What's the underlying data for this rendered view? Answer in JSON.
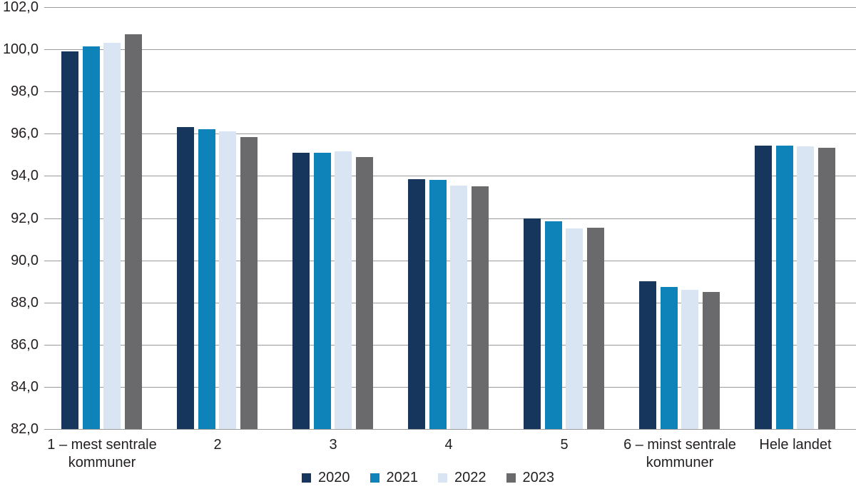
{
  "chart_data": {
    "type": "bar",
    "title": "",
    "categories": [
      "1 – mest sentrale kommuner",
      "2",
      "3",
      "4",
      "5",
      "6 – minst sentrale kommuner",
      "Hele landet"
    ],
    "series": [
      {
        "name": "2020",
        "color": "#17365D",
        "values": [
          99.9,
          96.3,
          95.1,
          93.85,
          92.0,
          89.0,
          95.45
        ]
      },
      {
        "name": "2021",
        "color": "#0D83B9",
        "values": [
          100.15,
          96.2,
          95.1,
          93.8,
          91.85,
          88.75,
          95.45
        ]
      },
      {
        "name": "2022",
        "color": "#D9E5F2",
        "values": [
          100.3,
          96.1,
          95.15,
          93.55,
          91.5,
          88.6,
          95.4
        ]
      },
      {
        "name": "2023",
        "color": "#6A6A6C",
        "values": [
          100.7,
          95.85,
          94.9,
          93.5,
          91.55,
          88.5,
          95.35
        ]
      }
    ],
    "y_axis": {
      "min": 82.0,
      "max": 102.0,
      "step": 2.0,
      "tick_labels": [
        "82,0",
        "84,0",
        "86,0",
        "88,0",
        "90,0",
        "92,0",
        "94,0",
        "96,0",
        "98,0",
        "100,0",
        "102,0"
      ]
    },
    "grid": true,
    "gridline_color": "#9B9B9B",
    "text_color": "#231F20",
    "legend_position": "bottom"
  }
}
